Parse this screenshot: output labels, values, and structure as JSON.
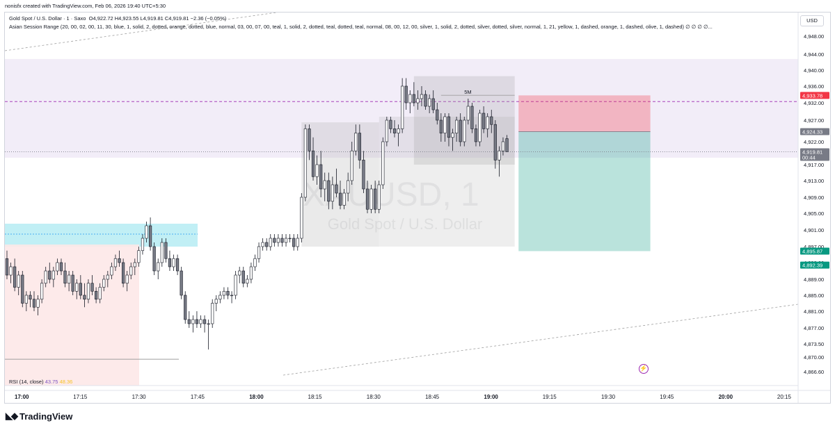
{
  "header": {
    "created_by": "nonisfx created with TradingView.com, Feb 06, 2026 19:40 UTC+5:30",
    "symbol_line": "Gold Spot / U.S. Dollar · 1 · Saxo",
    "ohlc": "O4,922.72  H4,923.55  L4,919.81  C4,919.81  −2.36 (−0.05%)",
    "indicator": "Asian Session Range (20, 00, 02, 00, 11, 30, blue, 1, solid, 2, dotted, orange, dotted, blue, normal, 03, 00, 07, 00, teal, 1, solid, 2, dotted, teal, dotted, teal, normal, 08, 00, 12, 00, silver, 1, solid, 2, dotted, silver, dotted, silver, normal, 1, 21, yellow, 1, dashed, orange, 1, dashed, olive, 1, dashed)  ∅  ∅  ∅  ∅..."
  },
  "currency_button": "USD",
  "rsi": {
    "label": "RSI (14, close)",
    "v1": "43.75",
    "v2": "48.36"
  },
  "watermark": {
    "symbol": "XAUUSD, 1",
    "name": "Gold Spot / U.S. Dollar"
  },
  "footer": {
    "brand": "TradingView"
  },
  "colors": {
    "up": "#ffffff",
    "down": "#787b86",
    "stop": "#f23645",
    "target": "#089981",
    "session_purple": "#ede7f6",
    "session_pink": "#fde8e8",
    "session_cyan": "#b2ebf2"
  },
  "chart_data": {
    "type": "candlestick",
    "y_axis_ticks": [
      "4,948.00",
      "4,944.00",
      "4,940.00",
      "4,936.00",
      "4,932.00",
      "4,927.00",
      "4,922.00",
      "4,917.00",
      "4,913.00",
      "4,909.00",
      "4,905.00",
      "4,901.00",
      "4,897.00",
      "4,893.00",
      "4,889.00",
      "4,885.00",
      "4,881.00",
      "4,877.00",
      "4,873.50",
      "4,870.00",
      "4,866.60"
    ],
    "y_values": [
      4948,
      4944,
      4940,
      4936,
      4932,
      4927,
      4922,
      4917,
      4913,
      4909,
      4905,
      4901,
      4897,
      4893,
      4889,
      4885,
      4881,
      4877,
      4873.5,
      4870,
      4866.6
    ],
    "x_axis_ticks": [
      "17:00",
      "17:15",
      "17:30",
      "17:45",
      "18:00",
      "18:15",
      "18:30",
      "18:45",
      "19:00",
      "19:15",
      "19:30",
      "19:45",
      "20:00",
      "20:15"
    ],
    "bold_ticks": [
      "17:00",
      "18:00",
      "19:00",
      "20:00"
    ],
    "price_tags": [
      {
        "label": "4,933.78",
        "value": 4933.78,
        "color": "#f23645"
      },
      {
        "label": "4,924.33",
        "value": 4924.33,
        "color": "#787b86"
      },
      {
        "label": "4,919.81",
        "sub": "00:44",
        "value": 4919.81,
        "color": "#787b86"
      },
      {
        "label": "4,895.87",
        "value": 4895.87,
        "color": "#089981"
      },
      {
        "label": "4,892.39",
        "value": 4892.39,
        "color": "#089981"
      }
    ],
    "position": {
      "entry": 4924.33,
      "stop": 4933.78,
      "target": 4895.87
    },
    "annotation": "5M",
    "start_time": "16:55",
    "minutes_per_bar": 1,
    "candles": [
      [
        4894,
        4896,
        4889,
        4890
      ],
      [
        4890,
        4893,
        4888,
        4892
      ],
      [
        4892,
        4894,
        4886,
        4887
      ],
      [
        4887,
        4891,
        4885,
        4890
      ],
      [
        4890,
        4891,
        4882,
        4883
      ],
      [
        4883,
        4886,
        4881,
        4885
      ],
      [
        4885,
        4886,
        4882,
        4884
      ],
      [
        4884,
        4886,
        4881,
        4882
      ],
      [
        4882,
        4885,
        4880,
        4884
      ],
      [
        4884,
        4889,
        4883,
        4888
      ],
      [
        4888,
        4892,
        4887,
        4891
      ],
      [
        4891,
        4893,
        4888,
        4889
      ],
      [
        4889,
        4892,
        4887,
        4891
      ],
      [
        4891,
        4894,
        4890,
        4893
      ],
      [
        4893,
        4894,
        4890,
        4891
      ],
      [
        4891,
        4893,
        4887,
        4888
      ],
      [
        4888,
        4891,
        4886,
        4890
      ],
      [
        4890,
        4891,
        4885,
        4886
      ],
      [
        4886,
        4889,
        4884,
        4888
      ],
      [
        4888,
        4890,
        4884,
        4885
      ],
      [
        4885,
        4888,
        4882,
        4884
      ],
      [
        4884,
        4889,
        4883,
        4888
      ],
      [
        4888,
        4890,
        4885,
        4886
      ],
      [
        4886,
        4887,
        4883,
        4884
      ],
      [
        4884,
        4888,
        4883,
        4887
      ],
      [
        4887,
        4890,
        4886,
        4889
      ],
      [
        4889,
        4891,
        4887,
        4890
      ],
      [
        4890,
        4893,
        4889,
        4892
      ],
      [
        4892,
        4895,
        4891,
        4894
      ],
      [
        4894,
        4896,
        4892,
        4893
      ],
      [
        4893,
        4894,
        4887,
        4888
      ],
      [
        4888,
        4891,
        4886,
        4890
      ],
      [
        4890,
        4893,
        4889,
        4892
      ],
      [
        4892,
        4894,
        4890,
        4893
      ],
      [
        4893,
        4897,
        4892,
        4896
      ],
      [
        4896,
        4900,
        4895,
        4899
      ],
      [
        4899,
        4903,
        4898,
        4902
      ],
      [
        4902,
        4904,
        4896,
        4897
      ],
      [
        4897,
        4898,
        4890,
        4891
      ],
      [
        4891,
        4894,
        4889,
        4893
      ],
      [
        4893,
        4899,
        4892,
        4898
      ],
      [
        4898,
        4899,
        4893,
        4894
      ],
      [
        4894,
        4896,
        4891,
        4892
      ],
      [
        4892,
        4895,
        4891,
        4894
      ],
      [
        4894,
        4895,
        4890,
        4891
      ],
      [
        4891,
        4892,
        4884,
        4885
      ],
      [
        4885,
        4886,
        4878,
        4879
      ],
      [
        4879,
        4881,
        4877,
        4878
      ],
      [
        4878,
        4880,
        4876,
        4879
      ],
      [
        4879,
        4881,
        4877,
        4878
      ],
      [
        4878,
        4880,
        4877,
        4879
      ],
      [
        4879,
        4880,
        4876,
        4878
      ],
      [
        4878,
        4879,
        4872,
        4878
      ],
      [
        4878,
        4884,
        4877,
        4883
      ],
      [
        4883,
        4885,
        4881,
        4884
      ],
      [
        4884,
        4886,
        4883,
        4885
      ],
      [
        4885,
        4887,
        4884,
        4886
      ],
      [
        4886,
        4887,
        4884,
        4885
      ],
      [
        4885,
        4886,
        4883,
        4885
      ],
      [
        4885,
        4891,
        4884,
        4890
      ],
      [
        4890,
        4892,
        4888,
        4891
      ],
      [
        4891,
        4892,
        4887,
        4888
      ],
      [
        4888,
        4890,
        4887,
        4889
      ],
      [
        4889,
        4893,
        4888,
        4892
      ],
      [
        4892,
        4895,
        4891,
        4894
      ],
      [
        4894,
        4898,
        4893,
        4897
      ],
      [
        4897,
        4899,
        4896,
        4898
      ],
      [
        4898,
        4899,
        4896,
        4897
      ],
      [
        4897,
        4900,
        4896,
        4899
      ],
      [
        4899,
        4900,
        4897,
        4898
      ],
      [
        4898,
        4900,
        4897,
        4899
      ],
      [
        4899,
        4900,
        4897,
        4898
      ],
      [
        4898,
        4900,
        4897,
        4899
      ],
      [
        4899,
        4900,
        4898,
        4899
      ],
      [
        4899,
        4900,
        4896,
        4897
      ],
      [
        4897,
        4900,
        4896,
        4899
      ],
      [
        4899,
        4910,
        4898,
        4909
      ],
      [
        4909,
        4926,
        4908,
        4925
      ],
      [
        4925,
        4926,
        4918,
        4920
      ],
      [
        4920,
        4923,
        4913,
        4914
      ],
      [
        4914,
        4919,
        4912,
        4917
      ],
      [
        4917,
        4920,
        4909,
        4911
      ],
      [
        4911,
        4915,
        4908,
        4913
      ],
      [
        4913,
        4915,
        4906,
        4908
      ],
      [
        4908,
        4914,
        4906,
        4912
      ],
      [
        4912,
        4916,
        4909,
        4910
      ],
      [
        4910,
        4913,
        4906,
        4907
      ],
      [
        4907,
        4911,
        4906,
        4910
      ],
      [
        4910,
        4915,
        4908,
        4913
      ],
      [
        4913,
        4922,
        4912,
        4920
      ],
      [
        4920,
        4926,
        4919,
        4924
      ],
      [
        4924,
        4926,
        4916,
        4918
      ],
      [
        4918,
        4920,
        4910,
        4911
      ],
      [
        4911,
        4913,
        4905,
        4906
      ],
      [
        4906,
        4912,
        4905,
        4911
      ],
      [
        4911,
        4913,
        4905,
        4906
      ],
      [
        4906,
        4913,
        4905,
        4912
      ],
      [
        4912,
        4923,
        4911,
        4922
      ],
      [
        4922,
        4928,
        4921,
        4927
      ],
      [
        4927,
        4928,
        4924,
        4925
      ],
      [
        4925,
        4927,
        4923,
        4924
      ],
      [
        4924,
        4926,
        4921,
        4925
      ],
      [
        4925,
        4938,
        4924,
        4936
      ],
      [
        4936,
        4938,
        4930,
        4932
      ],
      [
        4932,
        4935,
        4929,
        4934
      ],
      [
        4934,
        4937,
        4931,
        4932
      ],
      [
        4932,
        4935,
        4930,
        4933
      ],
      [
        4933,
        4936,
        4931,
        4934
      ],
      [
        4934,
        4935,
        4930,
        4931
      ],
      [
        4931,
        4934,
        4929,
        4933
      ],
      [
        4933,
        4935,
        4929,
        4930
      ],
      [
        4930,
        4932,
        4926,
        4927
      ],
      [
        4927,
        4929,
        4922,
        4924
      ],
      [
        4924,
        4929,
        4922,
        4928
      ],
      [
        4928,
        4929,
        4921,
        4923
      ],
      [
        4923,
        4925,
        4920,
        4924
      ],
      [
        4924,
        4928,
        4922,
        4927
      ],
      [
        4927,
        4929,
        4921,
        4922
      ],
      [
        4922,
        4928,
        4921,
        4927
      ],
      [
        4927,
        4933,
        4926,
        4931
      ],
      [
        4931,
        4932,
        4924,
        4925
      ],
      [
        4925,
        4926,
        4921,
        4922
      ],
      [
        4922,
        4930,
        4921,
        4929
      ],
      [
        4929,
        4931,
        4924,
        4925
      ],
      [
        4925,
        4929,
        4923,
        4928
      ],
      [
        4928,
        4930,
        4924,
        4926
      ],
      [
        4926,
        4927,
        4916,
        4918
      ],
      [
        4918,
        4921,
        4914,
        4920
      ],
      [
        4920,
        4923,
        4919,
        4922
      ],
      [
        4922.72,
        4923.55,
        4919.81,
        4919.81
      ]
    ]
  }
}
